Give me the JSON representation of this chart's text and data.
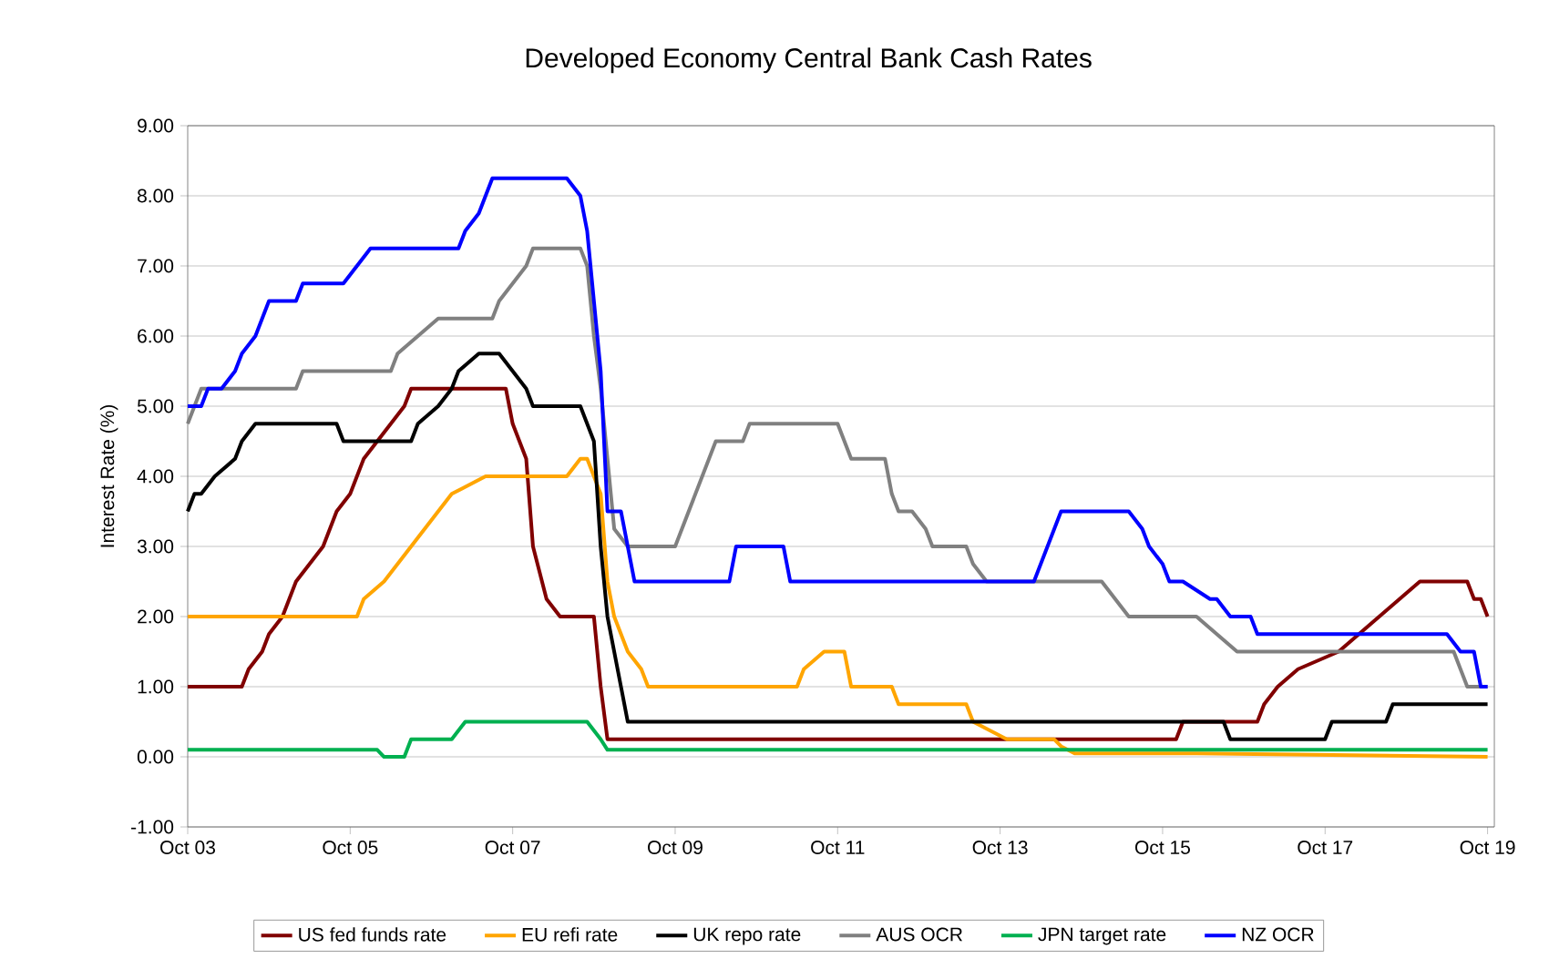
{
  "chart_data": {
    "type": "line",
    "title": "Developed Economy Central Bank Cash Rates",
    "ylabel": "Interest Rate (%)",
    "xlim": [
      "2003-10",
      "2019-11"
    ],
    "ylim": [
      -1,
      9
    ],
    "xticks": [
      {
        "value": "2003-10",
        "label": "Oct 03"
      },
      {
        "value": "2005-10",
        "label": "Oct 05"
      },
      {
        "value": "2007-10",
        "label": "Oct 07"
      },
      {
        "value": "2009-10",
        "label": "Oct 09"
      },
      {
        "value": "2011-10",
        "label": "Oct 11"
      },
      {
        "value": "2013-10",
        "label": "Oct 13"
      },
      {
        "value": "2015-10",
        "label": "Oct 15"
      },
      {
        "value": "2017-10",
        "label": "Oct 17"
      },
      {
        "value": "2019-10",
        "label": "Oct 19"
      }
    ],
    "yticks": [
      {
        "value": -1,
        "label": "-1.00"
      },
      {
        "value": 0,
        "label": "0.00"
      },
      {
        "value": 1,
        "label": "1.00"
      },
      {
        "value": 2,
        "label": "2.00"
      },
      {
        "value": 3,
        "label": "3.00"
      },
      {
        "value": 4,
        "label": "4.00"
      },
      {
        "value": 5,
        "label": "5.00"
      },
      {
        "value": 6,
        "label": "6.00"
      },
      {
        "value": 7,
        "label": "7.00"
      },
      {
        "value": 8,
        "label": "8.00"
      },
      {
        "value": 9,
        "label": "9.00"
      }
    ],
    "grid": "y",
    "legend": "bottom",
    "series": [
      {
        "name": "US fed funds rate",
        "color": "#800000",
        "x": [
          "2003-10",
          "2004-06",
          "2004-07",
          "2004-09",
          "2004-10",
          "2004-12",
          "2005-02",
          "2005-04",
          "2005-06",
          "2005-08",
          "2005-10",
          "2005-12",
          "2006-02",
          "2006-04",
          "2006-06",
          "2006-07",
          "2007-09",
          "2007-10",
          "2007-11",
          "2007-12",
          "2008-01",
          "2008-03",
          "2008-05",
          "2008-10",
          "2008-11",
          "2008-12",
          "2015-12",
          "2016-01",
          "2016-12",
          "2017-01",
          "2017-03",
          "2017-06",
          "2017-12",
          "2018-03",
          "2018-06",
          "2018-09",
          "2018-12",
          "2019-07",
          "2019-08",
          "2019-09",
          "2019-10"
        ],
        "values": [
          1,
          1,
          1.25,
          1.5,
          1.75,
          2,
          2.5,
          2.75,
          3,
          3.5,
          3.75,
          4.25,
          4.5,
          4.75,
          5,
          5.25,
          5.25,
          4.75,
          4.5,
          4.25,
          3,
          2.25,
          2,
          2,
          1,
          0.25,
          0.25,
          0.5,
          0.5,
          0.75,
          1,
          1.25,
          1.5,
          1.75,
          2,
          2.25,
          2.5,
          2.5,
          2.25,
          2.25,
          2
        ]
      },
      {
        "name": "EU refi rate",
        "color": "#ffa500",
        "x": [
          "2003-10",
          "2005-11",
          "2005-12",
          "2006-03",
          "2006-05",
          "2006-07",
          "2006-09",
          "2006-11",
          "2007-01",
          "2007-06",
          "2008-06",
          "2008-08",
          "2008-09",
          "2008-11",
          "2008-12",
          "2009-01",
          "2009-03",
          "2009-05",
          "2009-06",
          "2011-04",
          "2011-05",
          "2011-08",
          "2011-11",
          "2011-12",
          "2012-06",
          "2012-07",
          "2013-05",
          "2013-06",
          "2013-11",
          "2014-06",
          "2014-07",
          "2014-09",
          "2016-03",
          "2019-10"
        ],
        "values": [
          2,
          2,
          2.25,
          2.5,
          2.75,
          3,
          3.25,
          3.5,
          3.75,
          4,
          4,
          4.25,
          4.25,
          3.75,
          2.5,
          2,
          1.5,
          1.25,
          1,
          1,
          1.25,
          1.5,
          1.5,
          1,
          1,
          0.75,
          0.75,
          0.5,
          0.25,
          0.25,
          0.15,
          0.05,
          0.05,
          0
        ]
      },
      {
        "name": "UK repo rate",
        "color": "#000000",
        "x": [
          "2003-10",
          "2003-11",
          "2003-12",
          "2004-02",
          "2004-05",
          "2004-06",
          "2004-08",
          "2005-08",
          "2005-09",
          "2006-07",
          "2006-08",
          "2006-11",
          "2007-01",
          "2007-02",
          "2007-05",
          "2007-08",
          "2007-10",
          "2007-12",
          "2008-01",
          "2008-08",
          "2008-10",
          "2008-11",
          "2008-12",
          "2009-01",
          "2009-02",
          "2009-03",
          "2016-07",
          "2016-08",
          "2017-10",
          "2017-11",
          "2018-07",
          "2018-08",
          "2019-10"
        ],
        "values": [
          3.5,
          3.75,
          3.75,
          4,
          4.25,
          4.5,
          4.75,
          4.75,
          4.5,
          4.5,
          4.75,
          5,
          5.25,
          5.5,
          5.75,
          5.75,
          5.5,
          5.25,
          5,
          5,
          4.5,
          3,
          2,
          1.5,
          1,
          0.5,
          0.5,
          0.25,
          0.25,
          0.5,
          0.5,
          0.75,
          0.75
        ]
      },
      {
        "name": "AUS OCR",
        "color": "#808080",
        "x": [
          "2003-10",
          "2003-11",
          "2003-12",
          "2005-02",
          "2005-03",
          "2006-04",
          "2006-05",
          "2006-08",
          "2006-11",
          "2007-07",
          "2007-08",
          "2007-10",
          "2007-12",
          "2008-01",
          "2008-08",
          "2008-09",
          "2008-10",
          "2008-11",
          "2008-12",
          "2009-01",
          "2009-03",
          "2009-10",
          "2009-11",
          "2009-12",
          "2010-01",
          "2010-02",
          "2010-03",
          "2010-04",
          "2010-08",
          "2010-09",
          "2011-10",
          "2011-12",
          "2012-05",
          "2012-06",
          "2012-07",
          "2012-09",
          "2012-11",
          "2012-12",
          "2013-05",
          "2013-06",
          "2013-08",
          "2015-01",
          "2015-03",
          "2015-05",
          "2016-03",
          "2016-06",
          "2016-09",
          "2019-05",
          "2019-06",
          "2019-07",
          "2019-10"
        ],
        "values": [
          4.75,
          5,
          5.25,
          5.25,
          5.5,
          5.5,
          5.75,
          6,
          6.25,
          6.25,
          6.5,
          6.75,
          7,
          7.25,
          7.25,
          7,
          6,
          5.25,
          4.25,
          3.25,
          3,
          3,
          3.25,
          3.5,
          3.75,
          4,
          4.25,
          4.5,
          4.5,
          4.75,
          4.75,
          4.25,
          4.25,
          3.75,
          3.5,
          3.5,
          3.25,
          3,
          3,
          2.75,
          2.5,
          2.5,
          2.25,
          2,
          2,
          1.75,
          1.5,
          1.5,
          1.25,
          1,
          1
        ]
      },
      {
        "name": "JPN target rate",
        "color": "#00b050",
        "x": [
          "2003-10",
          "2006-02",
          "2006-03",
          "2006-06",
          "2006-07",
          "2007-01",
          "2007-03",
          "2008-09",
          "2008-11",
          "2008-12",
          "2019-10"
        ],
        "values": [
          0.1,
          0.1,
          0,
          0,
          0.25,
          0.25,
          0.5,
          0.5,
          0.25,
          0.1,
          0.1
        ]
      },
      {
        "name": "NZ OCR",
        "color": "#0000ff",
        "x": [
          "2003-10",
          "2003-12",
          "2004-01",
          "2004-03",
          "2004-05",
          "2004-06",
          "2004-08",
          "2004-09",
          "2004-10",
          "2005-02",
          "2005-03",
          "2005-09",
          "2005-11",
          "2006-01",
          "2007-02",
          "2007-03",
          "2007-05",
          "2007-07",
          "2008-06",
          "2008-08",
          "2008-09",
          "2008-10",
          "2008-11",
          "2008-12",
          "2009-02",
          "2009-04",
          "2010-06",
          "2010-07",
          "2011-02",
          "2011-03",
          "2014-03",
          "2014-04",
          "2014-05",
          "2014-06",
          "2014-07",
          "2015-05",
          "2015-07",
          "2015-08",
          "2015-10",
          "2015-11",
          "2016-01",
          "2016-05",
          "2016-06",
          "2016-08",
          "2016-11",
          "2016-12",
          "2019-04",
          "2019-06",
          "2019-08",
          "2019-09",
          "2019-10"
        ],
        "values": [
          5,
          5,
          5.25,
          5.25,
          5.5,
          5.75,
          6,
          6.25,
          6.5,
          6.5,
          6.75,
          6.75,
          7,
          7.25,
          7.25,
          7.5,
          7.75,
          8.25,
          8.25,
          8,
          7.5,
          6.5,
          5.5,
          3.5,
          3.5,
          2.5,
          2.5,
          3,
          3,
          2.5,
          2.5,
          2.75,
          3,
          3.25,
          3.5,
          3.5,
          3.25,
          3,
          2.75,
          2.5,
          2.5,
          2.25,
          2.25,
          2,
          2,
          1.75,
          1.75,
          1.5,
          1.5,
          1,
          1
        ]
      }
    ]
  }
}
